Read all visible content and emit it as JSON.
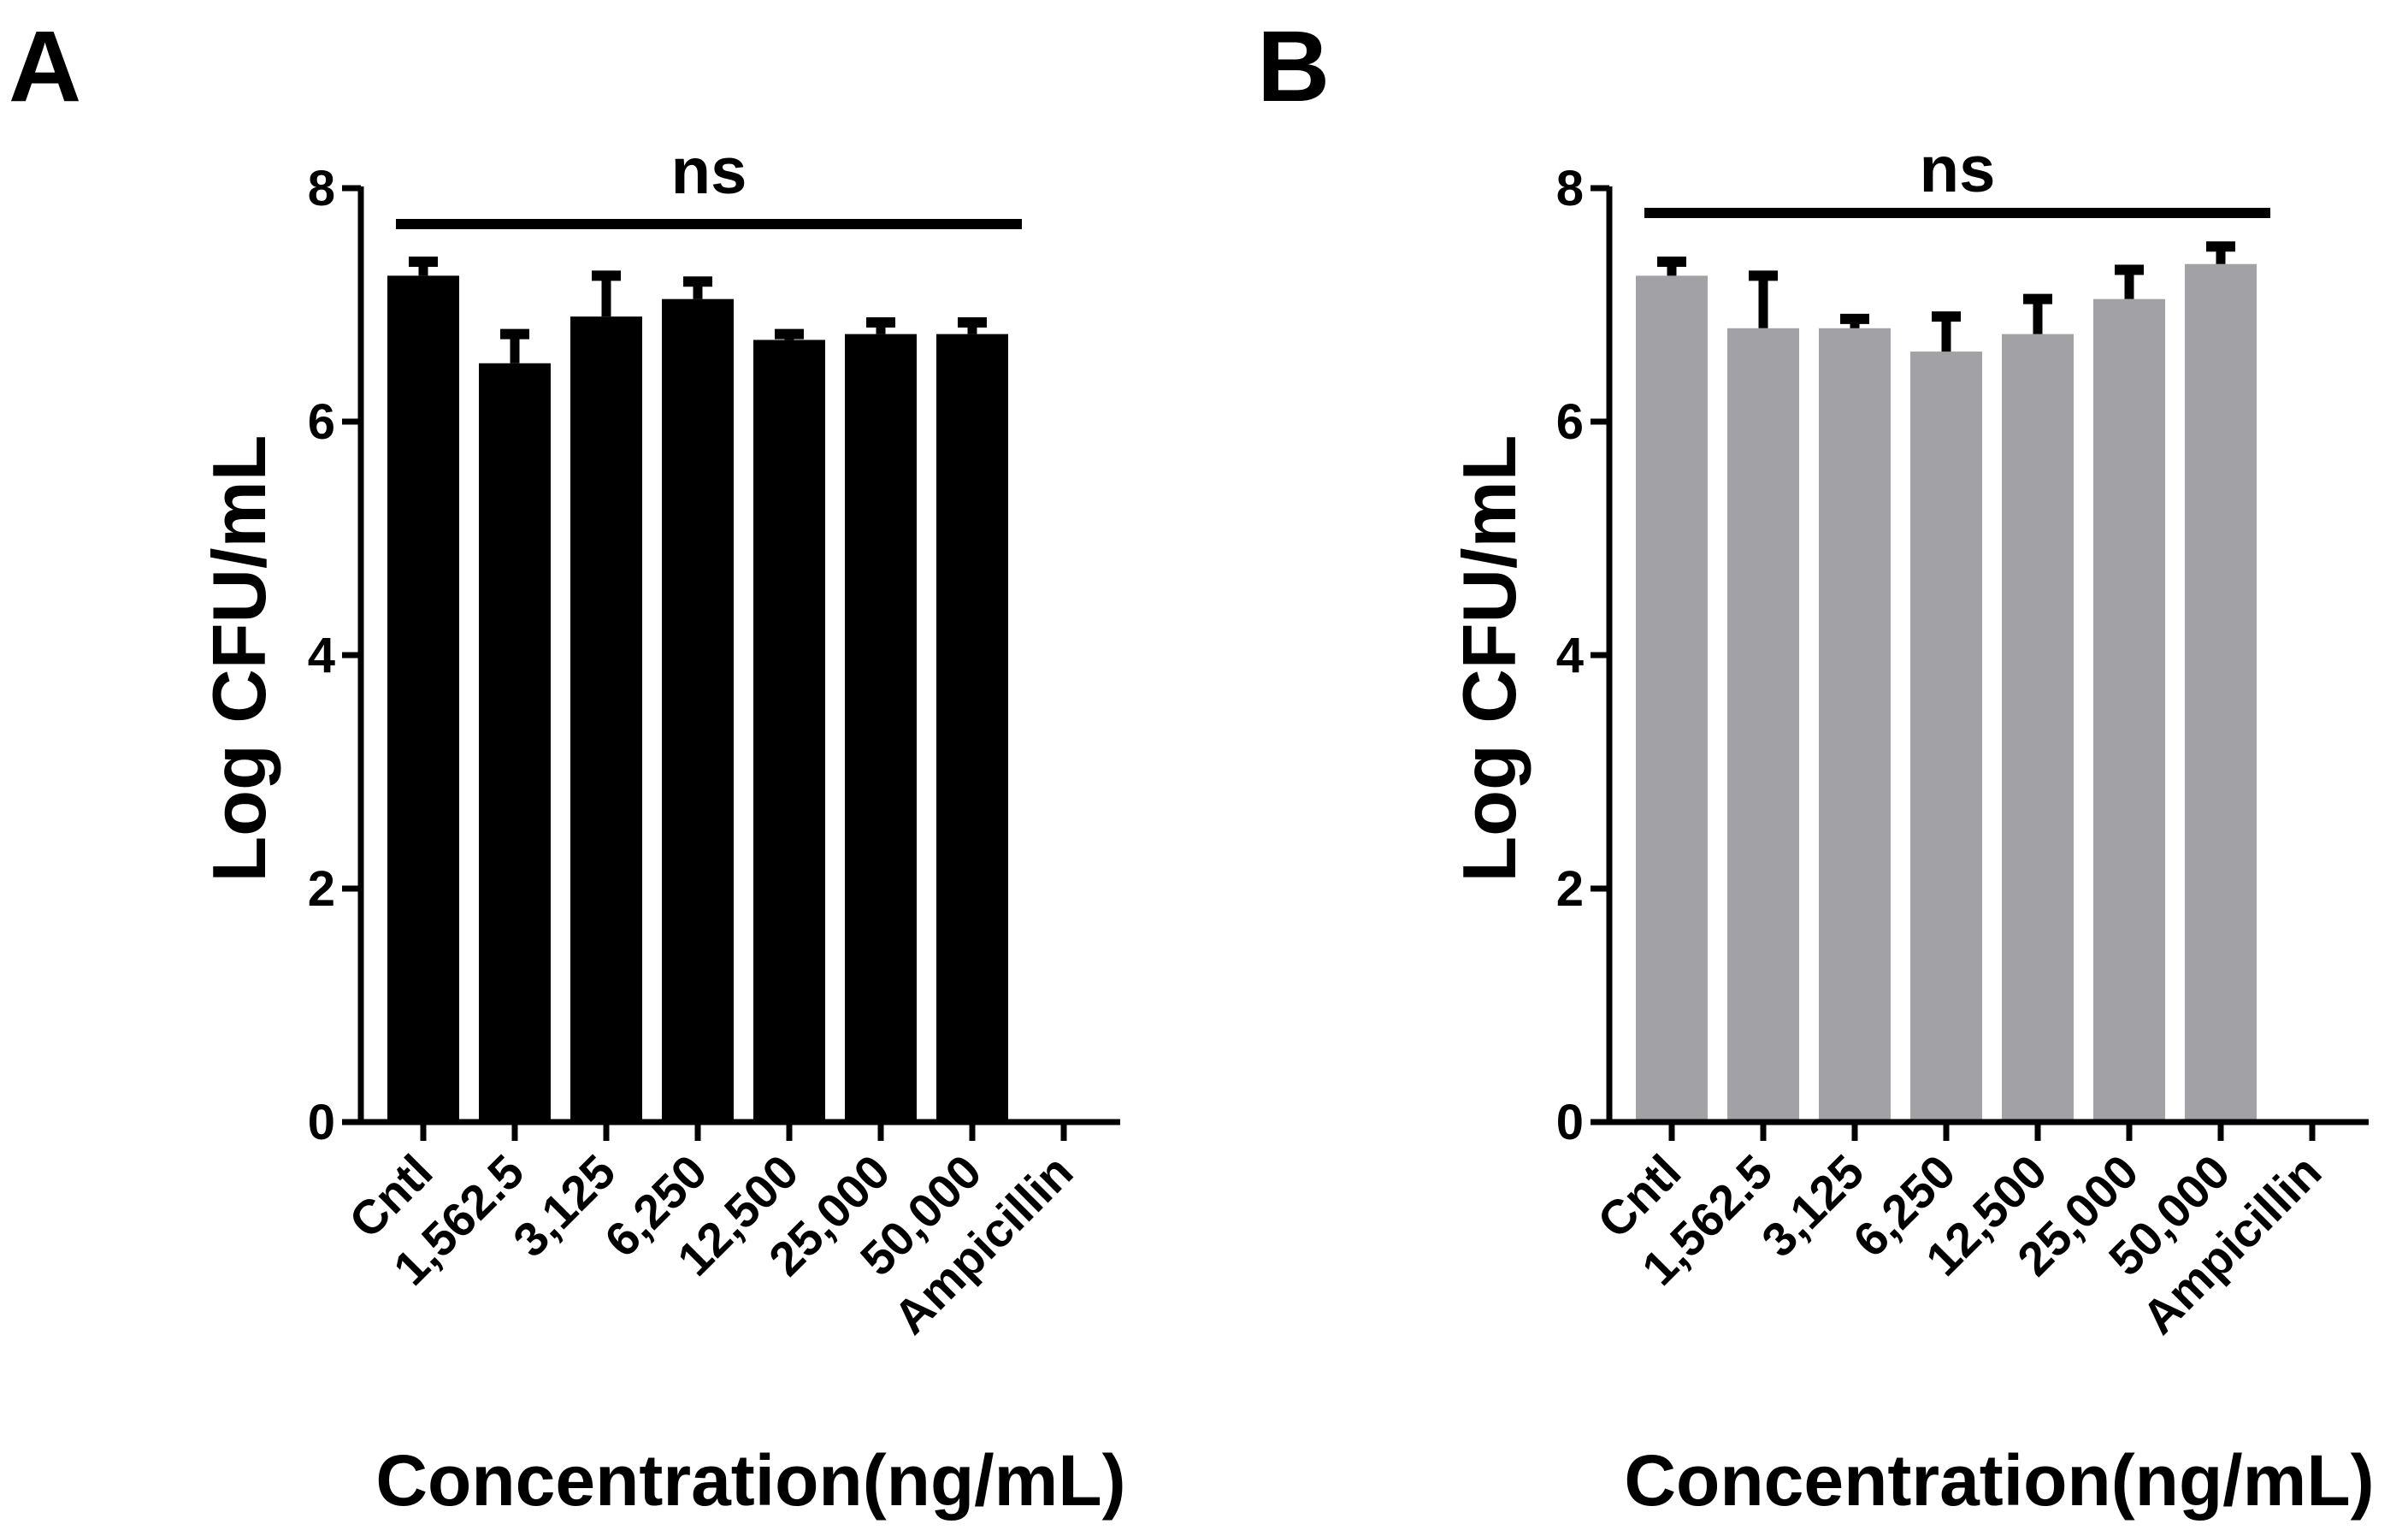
{
  "chart_data": [
    {
      "type": "bar",
      "panel": "A",
      "ylabel": "Log  CFU/mL",
      "xlabel": "Concentration(ng/mL)",
      "yticks": [
        "0",
        "2",
        "4",
        "6",
        "8"
      ],
      "ylim": [
        0,
        8
      ],
      "categories": [
        "Cntl",
        "1,562.5",
        "3,125",
        "6,250",
        "12,500",
        "25,000",
        "50,000",
        "Ampicillin"
      ],
      "values": [
        7.25,
        6.5,
        6.9,
        7.05,
        6.7,
        6.75,
        6.75,
        0
      ],
      "errors": [
        0.12,
        0.25,
        0.35,
        0.15,
        0.05,
        0.1,
        0.1,
        0
      ],
      "significance": "ns",
      "bar_color": "#000000"
    },
    {
      "type": "bar",
      "panel": "B",
      "ylabel": "Log  CFU/mL",
      "xlabel": "Concentration(ng/mL)",
      "yticks": [
        "0",
        "2",
        "4",
        "6",
        "8"
      ],
      "ylim": [
        0,
        8
      ],
      "categories": [
        "Cntl",
        "1,562.5",
        "3,125",
        "6,250",
        "12,500",
        "25,000",
        "50,000",
        "Ampicillin"
      ],
      "values": [
        7.25,
        6.8,
        6.8,
        6.6,
        6.75,
        7.05,
        7.35,
        0
      ],
      "errors": [
        0.12,
        0.45,
        0.08,
        0.3,
        0.3,
        0.25,
        0.15,
        0
      ],
      "significance": "ns",
      "bar_color": "#a2a2a6"
    }
  ]
}
